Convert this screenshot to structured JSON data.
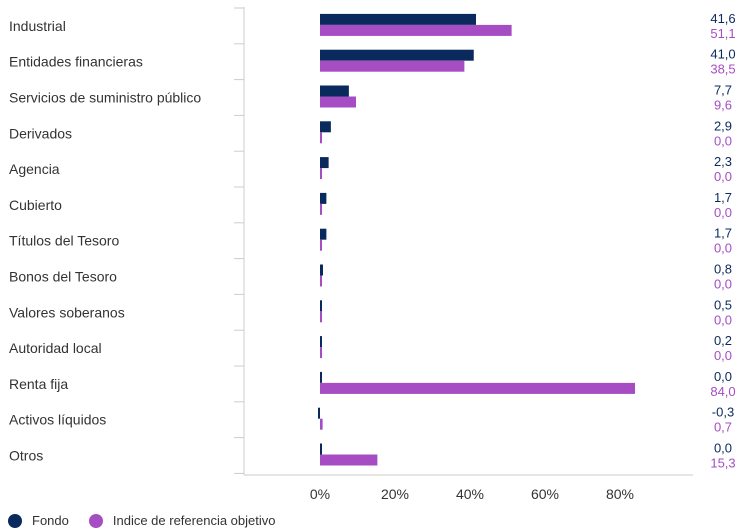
{
  "chart_data": {
    "type": "bar",
    "orientation": "horizontal",
    "categories": [
      "Industrial",
      "Entidades financieras",
      "Servicios de suministro público",
      "Derivados",
      "Agencia",
      "Cubierto",
      "Títulos del Tesoro",
      "Bonos del Tesoro",
      "Valores soberanos",
      "Autoridad local",
      "Renta fija",
      "Activos líquidos",
      "Otros"
    ],
    "series": [
      {
        "name": "Fondo",
        "color": "#0a2a5e",
        "values": [
          41.6,
          41.0,
          7.7,
          2.9,
          2.3,
          1.7,
          1.7,
          0.8,
          0.5,
          0.2,
          0.0,
          -0.3,
          0.0
        ],
        "labels": [
          "41,6",
          "41,0",
          "7,7",
          "2,9",
          "2,3",
          "1,7",
          "1,7",
          "0,8",
          "0,5",
          "0,2",
          "0,0",
          "-0,3",
          "0,0"
        ]
      },
      {
        "name": "Indice de referencia objetivo",
        "color": "#a64dc4",
        "values": [
          51.1,
          38.5,
          9.6,
          0.0,
          0.0,
          0.0,
          0.0,
          0.0,
          0.0,
          0.0,
          84.0,
          0.7,
          15.3
        ],
        "labels": [
          "51,1",
          "38,5",
          "9,6",
          "0,0",
          "0,0",
          "0,0",
          "0,0",
          "0,0",
          "0,0",
          "0,0",
          "84,0",
          "0,7",
          "15,3"
        ]
      }
    ],
    "xlim": [
      -20,
      100
    ],
    "xticks": [
      0,
      20,
      40,
      60,
      80
    ],
    "xtick_labels": [
      "0%",
      "20%",
      "40%",
      "60%",
      "80%"
    ],
    "grid": false,
    "legend_position": "bottom-left"
  }
}
